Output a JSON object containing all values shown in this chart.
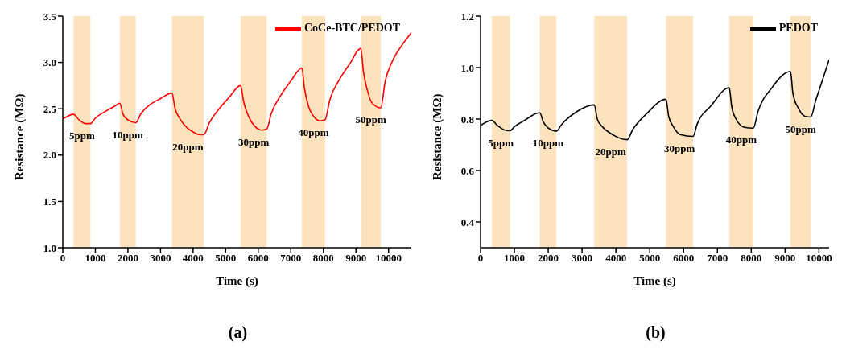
{
  "chart_data": [
    {
      "type": "line",
      "xlabel": "Time (s)",
      "ylabel": "Resistance (MΩ)",
      "xlim": [
        0,
        10700
      ],
      "xticks": [
        0,
        1000,
        2000,
        3000,
        4000,
        5000,
        6000,
        7000,
        8000,
        9000,
        10000
      ],
      "ylim": [
        1.0,
        3.5
      ],
      "yticks": [
        {
          "value": 1.0,
          "label": "1.0"
        },
        {
          "value": 1.5,
          "label": "1.5"
        },
        {
          "value": 2.0,
          "label": "2.0"
        },
        {
          "value": 2.5,
          "label": "2.5"
        },
        {
          "value": 3.0,
          "label": "3.0"
        },
        {
          "value": 3.5,
          "label": "3.5"
        }
      ],
      "grid": false,
      "legend": "top right",
      "line_style": "solid",
      "marker": "none",
      "series": [
        {
          "name": "CoCe-BTC/PEDOT",
          "color": "#ff0000",
          "x": [
            0,
            330,
            500,
            700,
            850,
            1000,
            1300,
            1600,
            1750,
            1850,
            2000,
            2240,
            2400,
            2700,
            3000,
            3350,
            3450,
            3600,
            3800,
            4000,
            4200,
            4330,
            4500,
            4800,
            5100,
            5460,
            5550,
            5700,
            5900,
            6100,
            6260,
            6400,
            6700,
            7000,
            7340,
            7420,
            7550,
            7700,
            7900,
            8050,
            8200,
            8500,
            8800,
            9150,
            9230,
            9350,
            9500,
            9760,
            9900,
            10100,
            10400,
            10700
          ],
          "values": [
            2.39,
            2.44,
            2.38,
            2.34,
            2.34,
            2.4,
            2.47,
            2.53,
            2.56,
            2.44,
            2.38,
            2.35,
            2.45,
            2.55,
            2.61,
            2.67,
            2.5,
            2.39,
            2.3,
            2.25,
            2.22,
            2.22,
            2.35,
            2.5,
            2.62,
            2.75,
            2.58,
            2.42,
            2.31,
            2.27,
            2.28,
            2.45,
            2.65,
            2.8,
            2.94,
            2.72,
            2.52,
            2.42,
            2.37,
            2.38,
            2.6,
            2.82,
            2.98,
            3.15,
            2.9,
            2.7,
            2.56,
            2.51,
            2.8,
            3.0,
            3.18,
            3.32
          ]
        }
      ],
      "bands": [
        {
          "axis": "x",
          "from": 330,
          "to": 850,
          "color": "#fde3bd",
          "label": "5ppm"
        },
        {
          "axis": "x",
          "from": 1750,
          "to": 2240,
          "color": "#fde3bd",
          "label": "10ppm"
        },
        {
          "axis": "x",
          "from": 3350,
          "to": 4330,
          "color": "#fde3bd",
          "label": "20ppm"
        },
        {
          "axis": "x",
          "from": 5460,
          "to": 6260,
          "color": "#fde3bd",
          "label": "30ppm"
        },
        {
          "axis": "x",
          "from": 7340,
          "to": 8050,
          "color": "#fde3bd",
          "label": "40ppm"
        },
        {
          "axis": "x",
          "from": 9150,
          "to": 9760,
          "color": "#fde3bd",
          "label": "50ppm"
        }
      ],
      "annotations": [
        "(a)"
      ]
    },
    {
      "type": "line",
      "xlabel": "Time (s)",
      "ylabel": "Resistance (MΩ)",
      "xlim": [
        0,
        10300
      ],
      "xticks": [
        0,
        1000,
        2000,
        3000,
        4000,
        5000,
        6000,
        7000,
        8000,
        9000,
        10000
      ],
      "ylim": [
        0.3,
        1.2
      ],
      "yticks": [
        {
          "value": 0.4,
          "label": "0.4"
        },
        {
          "value": 0.6,
          "label": "0.6"
        },
        {
          "value": 0.8,
          "label": "0.8"
        },
        {
          "value": 1.0,
          "label": "1.0"
        },
        {
          "value": 1.2,
          "label": "1.2"
        }
      ],
      "grid": false,
      "legend": "top right",
      "line_style": "solid",
      "marker": "none",
      "series": [
        {
          "name": "PEDOT",
          "color": "#000000",
          "x": [
            0,
            330,
            500,
            700,
            870,
            1000,
            1300,
            1750,
            1850,
            2000,
            2240,
            2400,
            2800,
            3360,
            3450,
            3600,
            3900,
            4330,
            4500,
            4900,
            5480,
            5560,
            5700,
            5900,
            6280,
            6400,
            6800,
            7350,
            7420,
            7550,
            7800,
            8060,
            8200,
            8600,
            9160,
            9230,
            9400,
            9600,
            9760,
            9900,
            10100,
            10300
          ],
          "values": [
            0.775,
            0.795,
            0.775,
            0.758,
            0.755,
            0.77,
            0.795,
            0.825,
            0.79,
            0.765,
            0.753,
            0.78,
            0.825,
            0.855,
            0.8,
            0.77,
            0.74,
            0.72,
            0.76,
            0.82,
            0.877,
            0.81,
            0.77,
            0.74,
            0.733,
            0.78,
            0.85,
            0.922,
            0.85,
            0.8,
            0.768,
            0.765,
            0.83,
            0.92,
            0.985,
            0.9,
            0.84,
            0.81,
            0.808,
            0.87,
            0.95,
            1.03
          ]
        }
      ],
      "bands": [
        {
          "axis": "x",
          "from": 330,
          "to": 870,
          "color": "#fde3bd",
          "label": "5ppm"
        },
        {
          "axis": "x",
          "from": 1750,
          "to": 2240,
          "color": "#fde3bd",
          "label": "10ppm"
        },
        {
          "axis": "x",
          "from": 3360,
          "to": 4330,
          "color": "#fde3bd",
          "label": "20ppm"
        },
        {
          "axis": "x",
          "from": 5480,
          "to": 6280,
          "color": "#fde3bd",
          "label": "30ppm"
        },
        {
          "axis": "x",
          "from": 7350,
          "to": 8060,
          "color": "#fde3bd",
          "label": "40ppm"
        },
        {
          "axis": "x",
          "from": 9160,
          "to": 9760,
          "color": "#fde3bd",
          "label": "50ppm"
        }
      ],
      "annotations": [
        "(b)"
      ]
    }
  ]
}
